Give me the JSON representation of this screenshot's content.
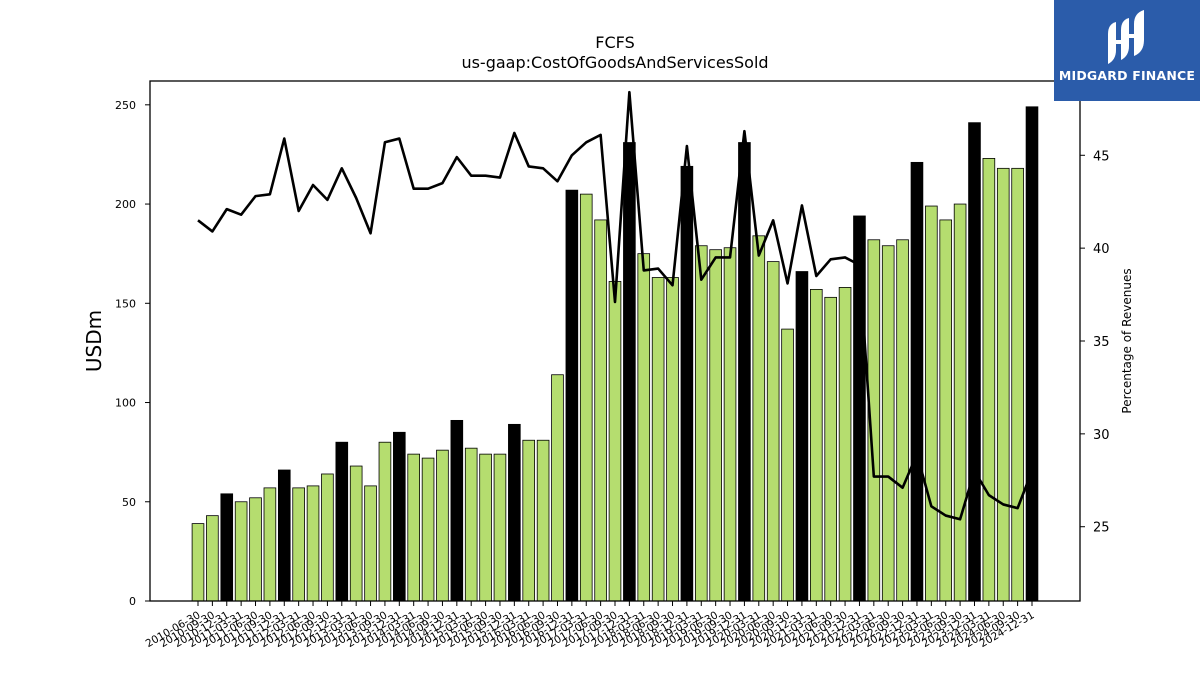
{
  "chart_data": {
    "type": "bar",
    "title": "FCFS",
    "subtitle": "us-gaap:CostOfGoodsAndServicesSold",
    "ylabel": "USDm",
    "y2label": "Percentage of Revenues",
    "ylim": [
      0,
      262
    ],
    "y2lim": [
      21,
      49
    ],
    "yticks": [
      "0",
      "50",
      "100",
      "150",
      "200",
      "250"
    ],
    "y2ticks": [
      "25",
      "30",
      "35",
      "40",
      "45"
    ],
    "categories": [
      "2010-06-30",
      "2010-09-30",
      "2010-12-31",
      "2011-03-31",
      "2011-06-30",
      "2011-09-30",
      "2011-12-31",
      "2012-03-31",
      "2012-06-30",
      "2012-09-30",
      "2012-12-31",
      "2013-03-31",
      "2013-06-30",
      "2013-09-30",
      "2013-12-31",
      "2014-03-31",
      "2014-06-30",
      "2014-09-30",
      "2014-12-31",
      "2015-03-31",
      "2015-06-30",
      "2015-09-30",
      "2015-12-31",
      "2016-03-31",
      "2016-06-30",
      "2016-09-30",
      "2016-12-31",
      "2017-03-31",
      "2017-06-30",
      "2017-09-30",
      "2017-12-31",
      "2018-03-31",
      "2018-06-30",
      "2018-09-30",
      "2018-12-31",
      "2019-03-31",
      "2019-06-30",
      "2019-09-30",
      "2019-12-31",
      "2020-03-31",
      "2020-06-30",
      "2020-09-30",
      "2020-12-31",
      "2021-03-31",
      "2021-06-30",
      "2021-09-30",
      "2021-12-31",
      "2022-03-31",
      "2022-06-30",
      "2022-09-30",
      "2022-12-31",
      "2023-03-31",
      "2023-06-30",
      "2023-09-30",
      "2023-12-31",
      "2024-03-31",
      "2024-06-30",
      "2024-09-30",
      "2024-12-31"
    ],
    "visible_tick_labels": [
      "2010-06-30",
      "2010-09-30",
      "2010-12-31",
      "2011-03-31",
      "2011-06-30",
      "2011-09-30",
      "2011-12-31",
      "2012-03-31",
      "2012-06-30",
      "2012-09-30",
      "2012-12-31",
      "2013-03-31",
      "2013-06-30",
      "2013-09-30",
      "2013-12-31",
      "2014-03-31",
      "2014-06-30",
      "2014-09-30",
      "2014-12-31",
      "2015-03-31",
      "2015-06-30",
      "2015-09-30",
      "2015-12-31",
      "2016-03-31",
      "2016-06-30",
      "2016-09-30",
      "2016-12-31",
      "2017-03-31",
      "2017-06-30",
      "2017-09-30",
      "2017-12-31",
      "2018-03-31",
      "2018-06-30",
      "2018-09-30",
      "2018-12-31",
      "2019-03-31",
      "2019-06-30",
      "2019-09-30",
      "2019-12-31",
      "2020-03-31",
      "2020-06-30",
      "2020-09-30",
      "2020-12-31",
      "2021-03-31",
      "2021-06-30",
      "2021-09-30",
      "2021-12-31",
      "2022-03-31",
      "2022-06-30",
      "2022-09-30",
      "2022-12-31",
      "2023-03-31",
      "2023-06-30",
      "2023-09-30",
      "2023-12-31",
      "2024-03-31",
      "2024-06-30",
      "2024-09-30",
      "2024-12-31"
    ],
    "series": [
      {
        "type": "bar",
        "values": [
          39,
          43,
          54,
          50,
          52,
          57,
          66,
          57,
          58,
          64,
          80,
          68,
          58,
          80,
          85,
          74,
          72,
          76,
          91,
          77,
          74,
          74,
          89,
          81,
          81,
          114,
          207,
          205,
          192,
          161,
          231,
          175,
          163,
          163,
          219,
          179,
          177,
          178,
          231,
          184,
          171,
          137,
          166,
          157,
          153,
          158,
          194,
          182,
          179,
          182,
          221,
          199,
          192,
          200,
          241,
          223,
          218,
          218,
          249
        ],
        "highlight": [
          false,
          false,
          true,
          false,
          false,
          false,
          true,
          false,
          false,
          false,
          true,
          false,
          false,
          false,
          true,
          false,
          false,
          false,
          true,
          false,
          false,
          false,
          true,
          false,
          false,
          false,
          true,
          false,
          false,
          false,
          true,
          false,
          false,
          false,
          true,
          false,
          false,
          false,
          true,
          false,
          false,
          false,
          true,
          false,
          false,
          false,
          true,
          false,
          false,
          false,
          true,
          false,
          false,
          false,
          true,
          false,
          false,
          false,
          true
        ]
      },
      {
        "type": "line",
        "axis": "right",
        "values": [
          41.5,
          40.9,
          42.1,
          41.8,
          42.8,
          42.9,
          45.9,
          42.0,
          43.4,
          42.6,
          44.3,
          42.7,
          40.8,
          45.7,
          45.9,
          43.2,
          43.2,
          43.5,
          44.9,
          43.9,
          43.9,
          43.8,
          46.2,
          44.4,
          44.3,
          43.6,
          45.0,
          45.7,
          46.1,
          37.1,
          48.4,
          38.8,
          38.9,
          38.0,
          45.5,
          38.3,
          39.5,
          39.5,
          46.3,
          39.6,
          41.5,
          38.1,
          42.3,
          38.5,
          39.4,
          39.5,
          39.1,
          27.7,
          27.7,
          27.1,
          28.9,
          26.1,
          25.6,
          25.4,
          28.0,
          26.7,
          26.2,
          26.0,
          28.0
        ]
      }
    ],
    "colors": {
      "bar": "#b5dd6f",
      "bar_highlight": "#000000",
      "line": "#000000"
    },
    "grid": false,
    "legend": "none"
  },
  "brand": {
    "logo_text": "MIDGARD FINANCE",
    "logo_bg": "#2b5caa"
  }
}
